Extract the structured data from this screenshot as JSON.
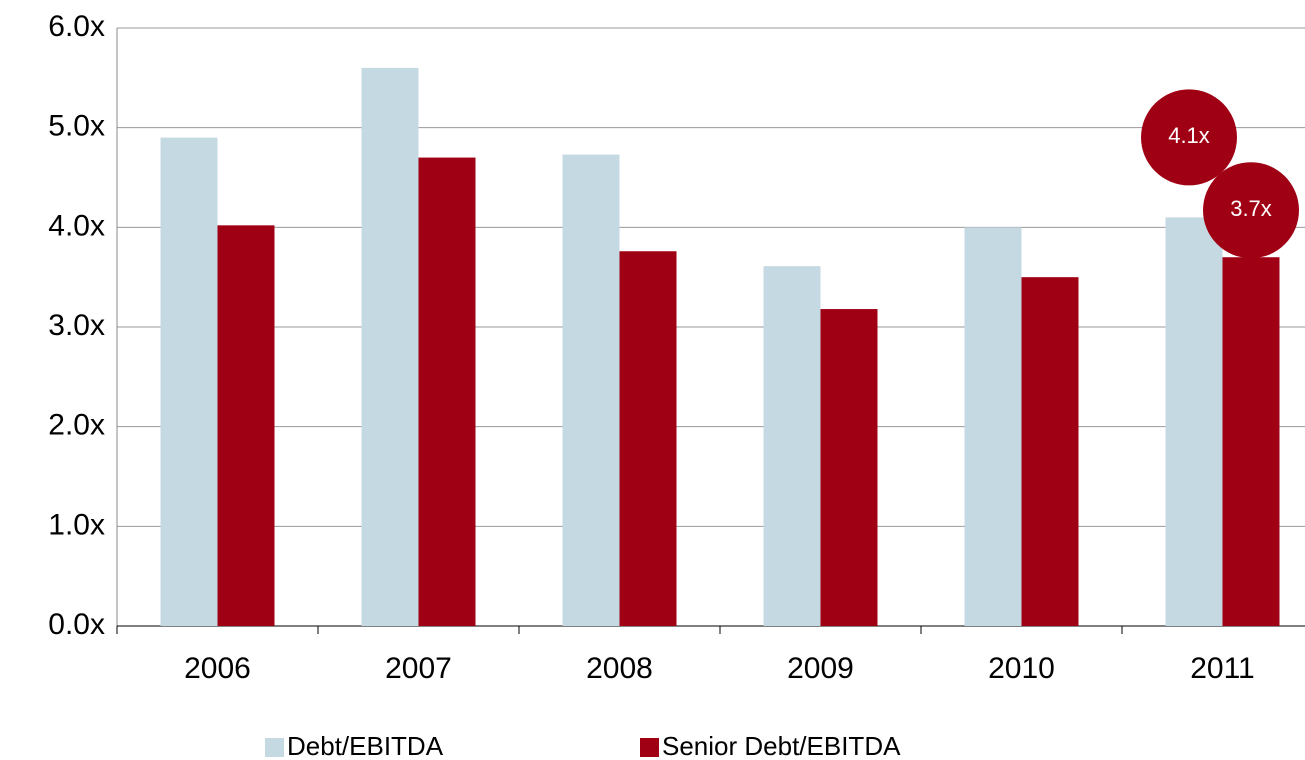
{
  "chart_data": {
    "type": "bar",
    "categories": [
      "2006",
      "2007",
      "2008",
      "2009",
      "2010",
      "2011"
    ],
    "series": [
      {
        "name": "Debt/EBITDA",
        "color": "#c5d9e3",
        "values": [
          4.9,
          5.6,
          4.73,
          3.61,
          4.0,
          4.1
        ],
        "value_labels": [
          null,
          null,
          null,
          null,
          null,
          "4.1x"
        ]
      },
      {
        "name": "Senior Debt/EBITDA",
        "color": "#a00014",
        "values": [
          4.02,
          4.7,
          3.76,
          3.18,
          3.5,
          3.7
        ],
        "value_labels": [
          null,
          null,
          null,
          null,
          null,
          "3.7x"
        ]
      }
    ],
    "ylim": [
      0,
      6
    ],
    "yticks": [
      {
        "value": 0,
        "label": "0.0x"
      },
      {
        "value": 1,
        "label": "1.0x"
      },
      {
        "value": 2,
        "label": "2.0x"
      },
      {
        "value": 3,
        "label": "3.0x"
      },
      {
        "value": 4,
        "label": "4.0x"
      },
      {
        "value": 5,
        "label": "5.0x"
      },
      {
        "value": 6,
        "label": "6.0x"
      }
    ],
    "grid": true,
    "legend": "bottom",
    "label_color": "#a00014"
  }
}
